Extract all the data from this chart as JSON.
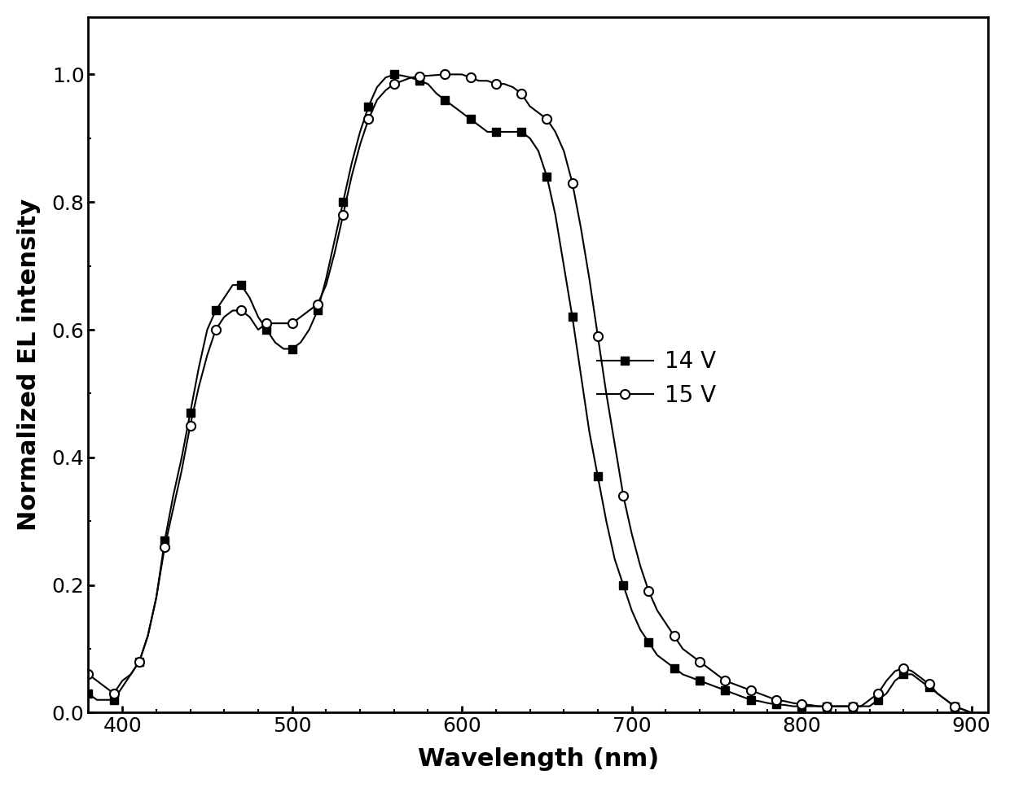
{
  "xlabel": "Wavelength (nm)",
  "ylabel": "Normalized EL intensity",
  "xlim": [
    380,
    910
  ],
  "ylim": [
    0,
    1.09
  ],
  "yticks": [
    0.0,
    0.2,
    0.4,
    0.6,
    0.8,
    1.0
  ],
  "xticks": [
    400,
    500,
    600,
    700,
    800,
    900
  ],
  "legend_14V": "14 V",
  "legend_15V": "15 V",
  "line_color": "#000000",
  "background_color": "#ffffff",
  "series_14V_x": [
    380,
    385,
    390,
    395,
    400,
    405,
    410,
    415,
    420,
    425,
    430,
    435,
    440,
    445,
    450,
    455,
    460,
    465,
    470,
    475,
    480,
    485,
    490,
    495,
    500,
    505,
    510,
    515,
    520,
    525,
    530,
    535,
    540,
    545,
    550,
    555,
    560,
    565,
    570,
    575,
    580,
    585,
    590,
    595,
    600,
    605,
    610,
    615,
    620,
    625,
    630,
    635,
    640,
    645,
    650,
    655,
    660,
    665,
    670,
    675,
    680,
    685,
    690,
    695,
    700,
    705,
    710,
    715,
    720,
    725,
    730,
    735,
    740,
    745,
    750,
    755,
    760,
    765,
    770,
    775,
    780,
    785,
    790,
    795,
    800,
    805,
    810,
    815,
    820,
    825,
    830,
    835,
    840,
    845,
    850,
    855,
    860,
    865,
    870,
    875,
    880,
    885,
    890,
    895,
    900
  ],
  "series_14V_y": [
    0.03,
    0.02,
    0.02,
    0.02,
    0.04,
    0.06,
    0.08,
    0.12,
    0.18,
    0.27,
    0.34,
    0.4,
    0.47,
    0.54,
    0.6,
    0.63,
    0.65,
    0.67,
    0.67,
    0.65,
    0.62,
    0.6,
    0.58,
    0.57,
    0.57,
    0.58,
    0.6,
    0.63,
    0.68,
    0.74,
    0.8,
    0.86,
    0.91,
    0.95,
    0.98,
    0.995,
    1.0,
    0.998,
    0.995,
    0.99,
    0.985,
    0.97,
    0.96,
    0.95,
    0.94,
    0.93,
    0.92,
    0.91,
    0.91,
    0.91,
    0.91,
    0.91,
    0.9,
    0.88,
    0.84,
    0.78,
    0.7,
    0.62,
    0.53,
    0.44,
    0.37,
    0.3,
    0.24,
    0.2,
    0.16,
    0.13,
    0.11,
    0.09,
    0.08,
    0.07,
    0.06,
    0.055,
    0.05,
    0.045,
    0.04,
    0.035,
    0.03,
    0.025,
    0.02,
    0.018,
    0.015,
    0.013,
    0.012,
    0.01,
    0.01,
    0.01,
    0.01,
    0.01,
    0.01,
    0.01,
    0.01,
    0.01,
    0.01,
    0.02,
    0.03,
    0.05,
    0.06,
    0.06,
    0.05,
    0.04,
    0.03,
    0.02,
    0.01,
    0.005,
    0.0
  ],
  "series_15V_x": [
    380,
    385,
    390,
    395,
    400,
    405,
    410,
    415,
    420,
    425,
    430,
    435,
    440,
    445,
    450,
    455,
    460,
    465,
    470,
    475,
    480,
    485,
    490,
    495,
    500,
    505,
    510,
    515,
    520,
    525,
    530,
    535,
    540,
    545,
    550,
    555,
    560,
    565,
    570,
    575,
    580,
    585,
    590,
    595,
    600,
    605,
    610,
    615,
    620,
    625,
    630,
    635,
    640,
    645,
    650,
    655,
    660,
    665,
    670,
    675,
    680,
    685,
    690,
    695,
    700,
    705,
    710,
    715,
    720,
    725,
    730,
    735,
    740,
    745,
    750,
    755,
    760,
    765,
    770,
    775,
    780,
    785,
    790,
    795,
    800,
    805,
    810,
    815,
    820,
    825,
    830,
    835,
    840,
    845,
    850,
    855,
    860,
    865,
    870,
    875,
    880,
    885,
    890,
    895,
    900
  ],
  "series_15V_y": [
    0.06,
    0.05,
    0.04,
    0.03,
    0.05,
    0.06,
    0.08,
    0.12,
    0.18,
    0.26,
    0.32,
    0.38,
    0.45,
    0.51,
    0.56,
    0.6,
    0.62,
    0.63,
    0.63,
    0.62,
    0.6,
    0.61,
    0.61,
    0.61,
    0.61,
    0.62,
    0.63,
    0.64,
    0.67,
    0.72,
    0.78,
    0.84,
    0.89,
    0.93,
    0.96,
    0.975,
    0.985,
    0.99,
    0.995,
    0.997,
    0.998,
    0.999,
    1.0,
    1.0,
    1.0,
    0.995,
    0.99,
    0.99,
    0.985,
    0.985,
    0.98,
    0.97,
    0.95,
    0.94,
    0.93,
    0.91,
    0.88,
    0.83,
    0.76,
    0.68,
    0.59,
    0.5,
    0.42,
    0.34,
    0.28,
    0.23,
    0.19,
    0.16,
    0.14,
    0.12,
    0.1,
    0.09,
    0.08,
    0.07,
    0.06,
    0.05,
    0.045,
    0.04,
    0.035,
    0.03,
    0.025,
    0.02,
    0.018,
    0.015,
    0.013,
    0.012,
    0.01,
    0.01,
    0.01,
    0.01,
    0.01,
    0.01,
    0.02,
    0.03,
    0.05,
    0.065,
    0.07,
    0.065,
    0.055,
    0.045,
    0.03,
    0.02,
    0.01,
    0.005,
    0.0
  ]
}
